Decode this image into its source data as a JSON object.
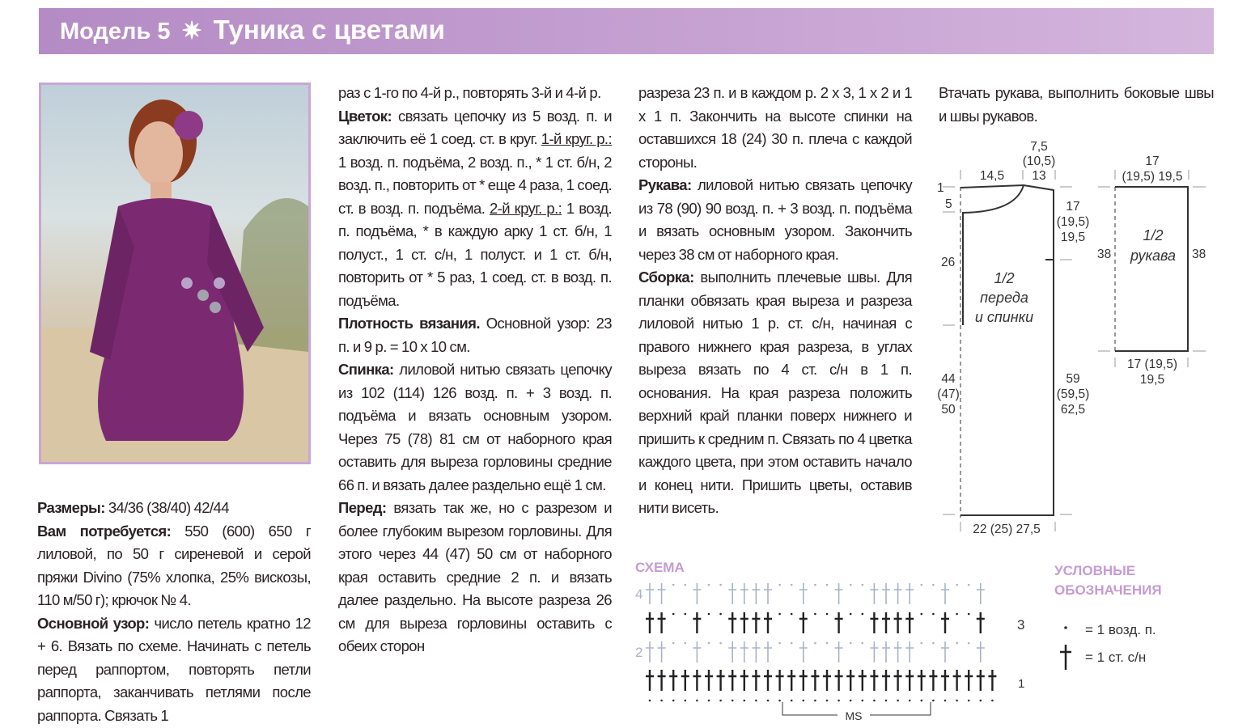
{
  "header": {
    "model": "Модель 5",
    "star": "✷",
    "title": "Туника с цветами",
    "color": "#b48bc4"
  },
  "photo": {
    "alt": "Женщина в лиловой вязаной тунике с цветами, сидящая на песке"
  },
  "col1": {
    "p1": {
      "lead": "Размеры:",
      "text": " 34/36 (38/40) 42/44"
    },
    "p2": {
      "lead": "Вам потребуется:",
      "text": " 550 (600) 650 г лиловой, по 50 г сиреневой и серой пряжи Divino (75% хлопка, 25% вискозы, 110 м/50 г); крючок № 4."
    },
    "p3": {
      "lead": "Основной узор:",
      "text": " число петель кратно 12 + 6. Вязать по схеме. Начинать с петель перед раппортом, повторять петли раппорта, заканчивать петлями после раппорта. Связать 1"
    }
  },
  "col2": {
    "p1": {
      "text": "раз с 1-го по 4-й р., повторять 3-й и 4-й р."
    },
    "p2": {
      "lead": "Цветок:",
      "text1": " связать цепочку из 5 возд. п. и заключить её 1 соед. ст. в круг. ",
      "u1": "1-й круг. р.:",
      "text2": " 1 возд. п. подъёма, 2 возд. п., * 1 ст. б/н, 2 возд. п., повторить от * еще 4 раза, 1 соед. ст. в возд. п. подъёма. ",
      "u2": "2-й круг. р.:",
      "text3": " 1 возд. п. подъёма, * в каждую арку 1 ст. б/н, 1 полуст., 1 ст. с/н, 1 полуст. и 1 ст. б/н, повторить от * 5 раз, 1 соед. ст. в возд. п. подъёма."
    },
    "p3": {
      "lead": "Плотность вязания.",
      "text": " Основной узор: 23 п. и 9 р. = 10 х 10 см."
    },
    "p4": {
      "lead": "Спинка:",
      "text": " лиловой нитью связать цепочку из 102 (114) 126 возд. п. + 3 возд. п. подъёма и вязать основным узором. Через 75 (78) 81 см от наборного края оставить для выреза горловины средние 66 п. и вязать далее раздельно ещё 1 см."
    },
    "p5": {
      "lead": "Перед:",
      "text": " вязать так же, но с разрезом и более глубоким вырезом горловины. Для этого через 44 (47) 50 см от наборного края оставить средние 2 п. и вязать далее раздельно. На высоте разреза 26 см для выреза горловины оставить с обеих сторон"
    }
  },
  "col3": {
    "p1": {
      "text": "разреза 23 п. и в каждом р. 2 х 3, 1 х 2 и 1 х 1 п. Закончить на высоте спинки на оставшихся 18 (24) 30 п. плеча с каждой стороны."
    },
    "p2": {
      "lead": "Рукава:",
      "text": " лиловой нитью связать цепочку из 78 (90) 90 возд. п. + 3 возд. п. подъёма и вязать основным узором. Закончить через 38 см от наборного края."
    },
    "p3": {
      "lead": "Сборка:",
      "text": " выполнить плечевые швы. Для планки обвязать края выреза и разреза лиловой нитью 1 р. ст. с/н, начиная с правого нижнего края разреза, в углах выреза вязать по 4 ст. с/н в 1 п. основания. На края разреза положить верхний край планки поверх нижнего и пришить к средним п. Связать по 4 цветка каждого цвета, при этом оставить начало и конец нити. Пришить цветы, оставив нити висеть."
    }
  },
  "col4": {
    "p1": {
      "text": "Втачать рукава, выполнить боковые швы и швы рукавов."
    }
  },
  "pattern": {
    "body_label": [
      "1/2",
      "переда",
      "и спинки"
    ],
    "shoulder": "14,5",
    "neck_top": [
      "7,5",
      "(10,5)",
      "13"
    ],
    "neck_drop_1": "1",
    "neck_drop_5": "5",
    "slit": "26",
    "armhole": [
      "17",
      "(19,5)",
      "19,5"
    ],
    "lower_left": [
      "44",
      "(47)",
      "50"
    ],
    "lower_right": [
      "59",
      "(59,5)",
      "62,5"
    ],
    "bottom": "22 (25) 27,5",
    "sleeve_label": [
      "1/2",
      "рукава"
    ],
    "sleeve_top": [
      "17",
      "(19,5) 19,5"
    ],
    "sleeve_left": "38",
    "sleeve_right": "38",
    "sleeve_bottom": [
      "17 (19,5)",
      "19,5"
    ]
  },
  "scheme": {
    "title": "СХЕМА",
    "rows": [
      "4",
      "3",
      "2",
      "1"
    ],
    "repeat": "MS",
    "row_pattern": "SS..S..SSSS..S..S..SSSS..S..S",
    "legend_title": [
      "УСЛОВНЫЕ",
      "ОБОЗНАЧЕНИЯ"
    ],
    "legend": [
      {
        "icon": "chain-dot",
        "text": "= 1 возд. п."
      },
      {
        "icon": "double-crochet-cross",
        "text": "= 1 ст. с/н"
      }
    ],
    "accent": "#c79ad4",
    "faded": "#a9b3c4"
  }
}
